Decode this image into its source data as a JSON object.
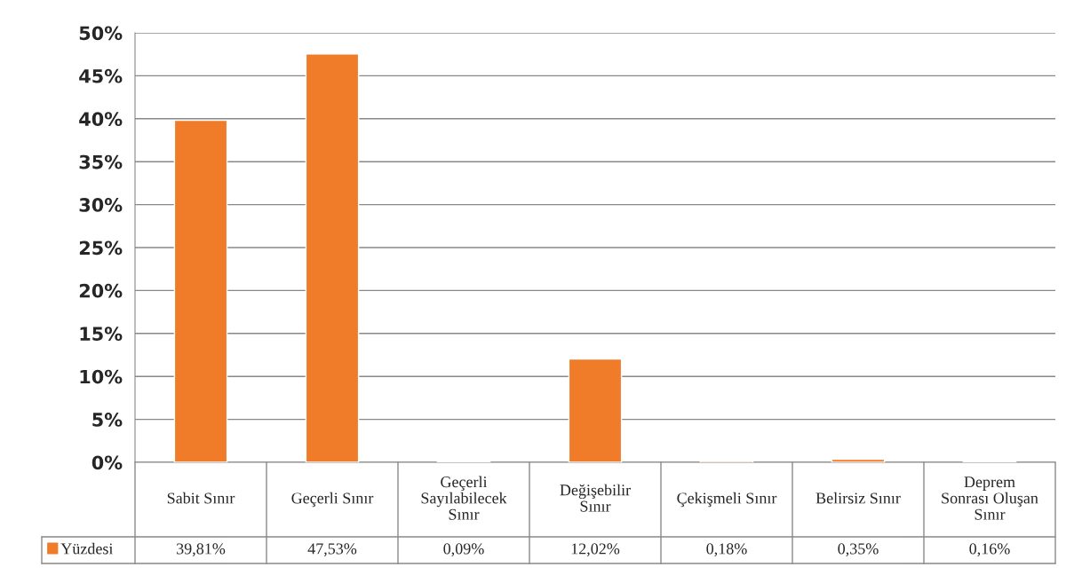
{
  "chart_data": {
    "type": "bar",
    "categories": [
      "Sabit Sınır",
      "Geçerli Sınır",
      "Geçerli\nSayılabilecek\nSınır",
      "Değişebilir\nSınır",
      "Çekişmeli Sınır",
      "Belirsiz Sınır",
      "Deprem\nSonrası Oluşan\nSınır"
    ],
    "series": [
      {
        "name": "Yüzdesi",
        "color": "#f07b28",
        "values": [
          39.81,
          47.53,
          0.09,
          12.02,
          0.18,
          0.35,
          0.16
        ],
        "value_labels": [
          "39,81%",
          "47,53%",
          "0,09%",
          "12,02%",
          "0,18%",
          "0,35%",
          "0,16%"
        ]
      }
    ],
    "ylim": [
      0,
      50
    ],
    "yticks": [
      {
        "value": 0,
        "label": "0%"
      },
      {
        "value": 5,
        "label": "5%"
      },
      {
        "value": 10,
        "label": "10%"
      },
      {
        "value": 15,
        "label": "15%"
      },
      {
        "value": 20,
        "label": "20%"
      },
      {
        "value": 25,
        "label": "25%"
      },
      {
        "value": 30,
        "label": "30%"
      },
      {
        "value": 35,
        "label": "35%"
      },
      {
        "value": 40,
        "label": "40%"
      },
      {
        "value": 45,
        "label": "45%"
      },
      {
        "value": 50,
        "label": "50%"
      }
    ],
    "grid": "y",
    "legend": "bottom left"
  }
}
